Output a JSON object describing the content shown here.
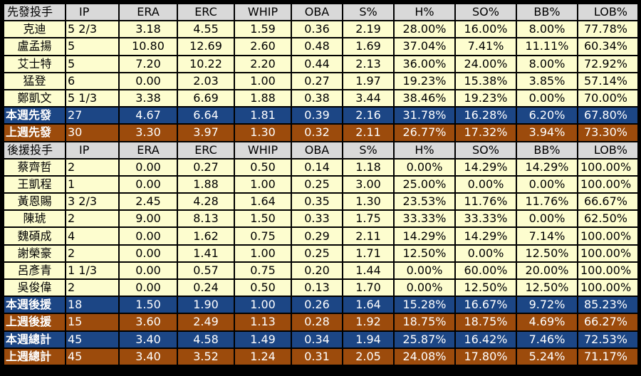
{
  "columns": [
    "IP",
    "ERA",
    "ERC",
    "WHIP",
    "OBA",
    "S%",
    "H%",
    "SO%",
    "BB%",
    "LOB%"
  ],
  "colors": {
    "header_bg": "#d9d9d9",
    "body_bg": "#fdfdcf",
    "blue_bg": "#1c4685",
    "orange_bg": "#9c4b0c"
  },
  "starters": {
    "header": "先發投手",
    "rows": [
      {
        "name": "克迪",
        "vals": [
          "5 2/3",
          "3.18",
          "4.55",
          "1.59",
          "0.36",
          "2.19",
          "28.00%",
          "16.00%",
          "8.00%",
          "77.78%"
        ]
      },
      {
        "name": "盧孟揚",
        "vals": [
          "5",
          "10.80",
          "12.69",
          "2.60",
          "0.48",
          "1.69",
          "37.04%",
          "7.41%",
          "11.11%",
          "60.34%"
        ]
      },
      {
        "name": "艾士特",
        "vals": [
          "5",
          "7.20",
          "10.22",
          "2.20",
          "0.44",
          "2.13",
          "36.00%",
          "24.00%",
          "8.00%",
          "72.92%"
        ]
      },
      {
        "name": "猛登",
        "vals": [
          "6",
          "0.00",
          "2.03",
          "1.00",
          "0.27",
          "1.97",
          "19.23%",
          "15.38%",
          "3.85%",
          "57.14%"
        ]
      },
      {
        "name": "鄭凱文",
        "vals": [
          "5 1/3",
          "3.38",
          "6.69",
          "1.88",
          "0.38",
          "3.44",
          "38.46%",
          "19.23%",
          "0.00%",
          "70.00%"
        ]
      }
    ],
    "this_week": {
      "name": "本週先發",
      "vals": [
        "27",
        "4.67",
        "6.64",
        "1.81",
        "0.39",
        "2.16",
        "31.78%",
        "16.28%",
        "6.20%",
        "67.80%"
      ]
    },
    "last_week": {
      "name": "上週先發",
      "vals": [
        "30",
        "3.30",
        "3.97",
        "1.30",
        "0.32",
        "2.11",
        "26.77%",
        "17.32%",
        "3.94%",
        "73.30%"
      ]
    }
  },
  "relievers": {
    "header": "後援投手",
    "rows": [
      {
        "name": "蔡齊哲",
        "vals": [
          "2",
          "0.00",
          "0.27",
          "0.50",
          "0.14",
          "1.18",
          "0.00%",
          "14.29%",
          "14.29%",
          "100.00%"
        ]
      },
      {
        "name": "王凱程",
        "vals": [
          "1",
          "0.00",
          "1.88",
          "1.00",
          "0.25",
          "3.00",
          "25.00%",
          "0.00%",
          "0.00%",
          "100.00%"
        ]
      },
      {
        "name": "黃恩賜",
        "vals": [
          "3 2/3",
          "2.45",
          "4.28",
          "1.64",
          "0.35",
          "1.30",
          "23.53%",
          "11.76%",
          "11.76%",
          "66.67%"
        ]
      },
      {
        "name": "陳琥",
        "vals": [
          "2",
          "9.00",
          "8.13",
          "1.50",
          "0.33",
          "1.75",
          "33.33%",
          "33.33%",
          "0.00%",
          "62.50%"
        ]
      },
      {
        "name": "魏碩成",
        "vals": [
          "4",
          "0.00",
          "1.62",
          "0.75",
          "0.29",
          "2.11",
          "14.29%",
          "14.29%",
          "7.14%",
          "100.00%"
        ]
      },
      {
        "name": "謝榮豪",
        "vals": [
          "2",
          "0.00",
          "1.41",
          "1.00",
          "0.25",
          "1.71",
          "12.50%",
          "0.00%",
          "12.50%",
          "100.00%"
        ]
      },
      {
        "name": "呂彥青",
        "vals": [
          "1 1/3",
          "0.00",
          "0.57",
          "0.75",
          "0.20",
          "1.44",
          "0.00%",
          "60.00%",
          "20.00%",
          "100.00%"
        ]
      },
      {
        "name": "吳俊偉",
        "vals": [
          "2",
          "0.00",
          "0.24",
          "0.50",
          "0.13",
          "1.70",
          "0.00%",
          "12.50%",
          "12.50%",
          "100.00%"
        ]
      }
    ],
    "this_week": {
      "name": "本週後援",
      "vals": [
        "18",
        "1.50",
        "1.90",
        "1.00",
        "0.26",
        "1.64",
        "15.28%",
        "16.67%",
        "9.72%",
        "85.23%"
      ]
    },
    "last_week": {
      "name": "上週後援",
      "vals": [
        "15",
        "3.60",
        "2.49",
        "1.13",
        "0.28",
        "1.92",
        "18.75%",
        "18.75%",
        "4.69%",
        "66.27%"
      ]
    }
  },
  "totals": {
    "this_week": {
      "name": "本週總計",
      "vals": [
        "45",
        "3.40",
        "4.58",
        "1.49",
        "0.34",
        "1.94",
        "25.87%",
        "16.42%",
        "7.46%",
        "72.53%"
      ]
    },
    "last_week": {
      "name": "上週總計",
      "vals": [
        "45",
        "3.40",
        "3.52",
        "1.24",
        "0.31",
        "2.05",
        "24.08%",
        "17.80%",
        "5.24%",
        "71.17%"
      ]
    }
  }
}
